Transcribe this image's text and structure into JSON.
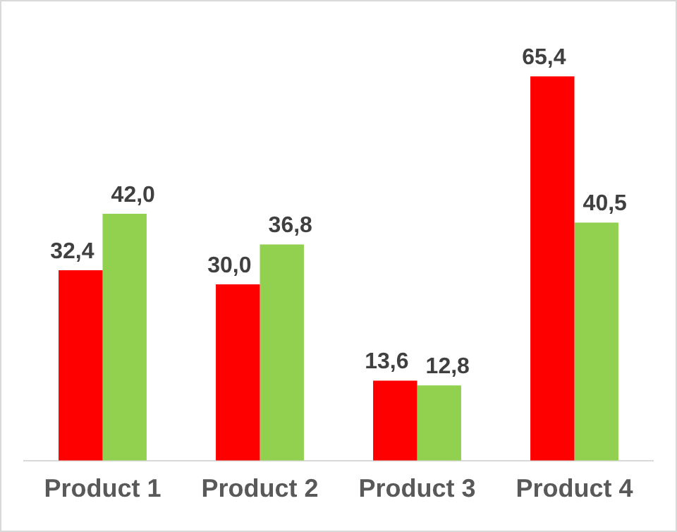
{
  "chart_data": {
    "type": "bar",
    "categories": [
      "Product 1",
      "Product 2",
      "Product 3",
      "Product 4"
    ],
    "series": [
      {
        "color": "#ff0000",
        "values": [
          32.4,
          30.0,
          13.6,
          65.4
        ],
        "value_labels": [
          "32,4",
          "30,0",
          "13,6",
          "65,4"
        ]
      },
      {
        "color": "#92d050",
        "values": [
          42.0,
          36.8,
          12.8,
          40.5
        ],
        "value_labels": [
          "42,0",
          "36,8",
          "12,8",
          "40,5"
        ]
      }
    ],
    "grid": false,
    "legend": false
  }
}
